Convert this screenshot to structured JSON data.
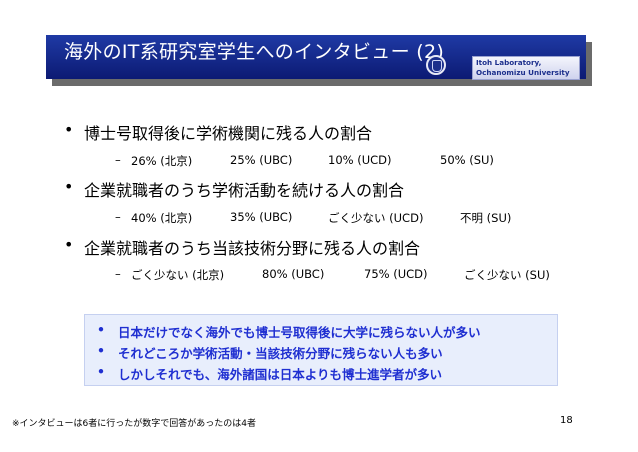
{
  "title": "海外のIT系研究室学生へのインタビュー (2)",
  "lab": {
    "line1": "Itoh Laboratory,",
    "line2": "Ochanomizu University"
  },
  "bullets": [
    {
      "heading": "博士号取得後に学術機関に残る人の割合",
      "values": [
        "26% (北京)",
        "25% (UBC)",
        "10% (UCD)",
        "50% (SU)"
      ]
    },
    {
      "heading": "企業就職者のうち学術活動を続ける人の割合",
      "values": [
        "40% (北京)",
        "35% (UBC)",
        "ごく少ない (UCD)",
        "不明 (SU)"
      ]
    },
    {
      "heading": "企業就職者のうち当該技術分野に残る人の割合",
      "values": [
        "ごく少ない (北京)",
        "80% (UBC)",
        "75% (UCD)",
        "ごく少ない (SU)"
      ]
    }
  ],
  "highlight": [
    "日本だけでなく海外でも博士号取得後に大学に残らない人が多い",
    "それどころか学術活動・当該技術分野に残らない人も多い",
    "しかしそれでも、海外諸国は日本よりも博士進学者が多い"
  ],
  "footnote": "※インタビューは6者に行ったが数字で回答があったのは4者",
  "page_number": "18",
  "colors": {
    "title_bar": "#1a2f95",
    "highlight_text": "#1f2fd1",
    "highlight_bg": "#e8eefc"
  }
}
